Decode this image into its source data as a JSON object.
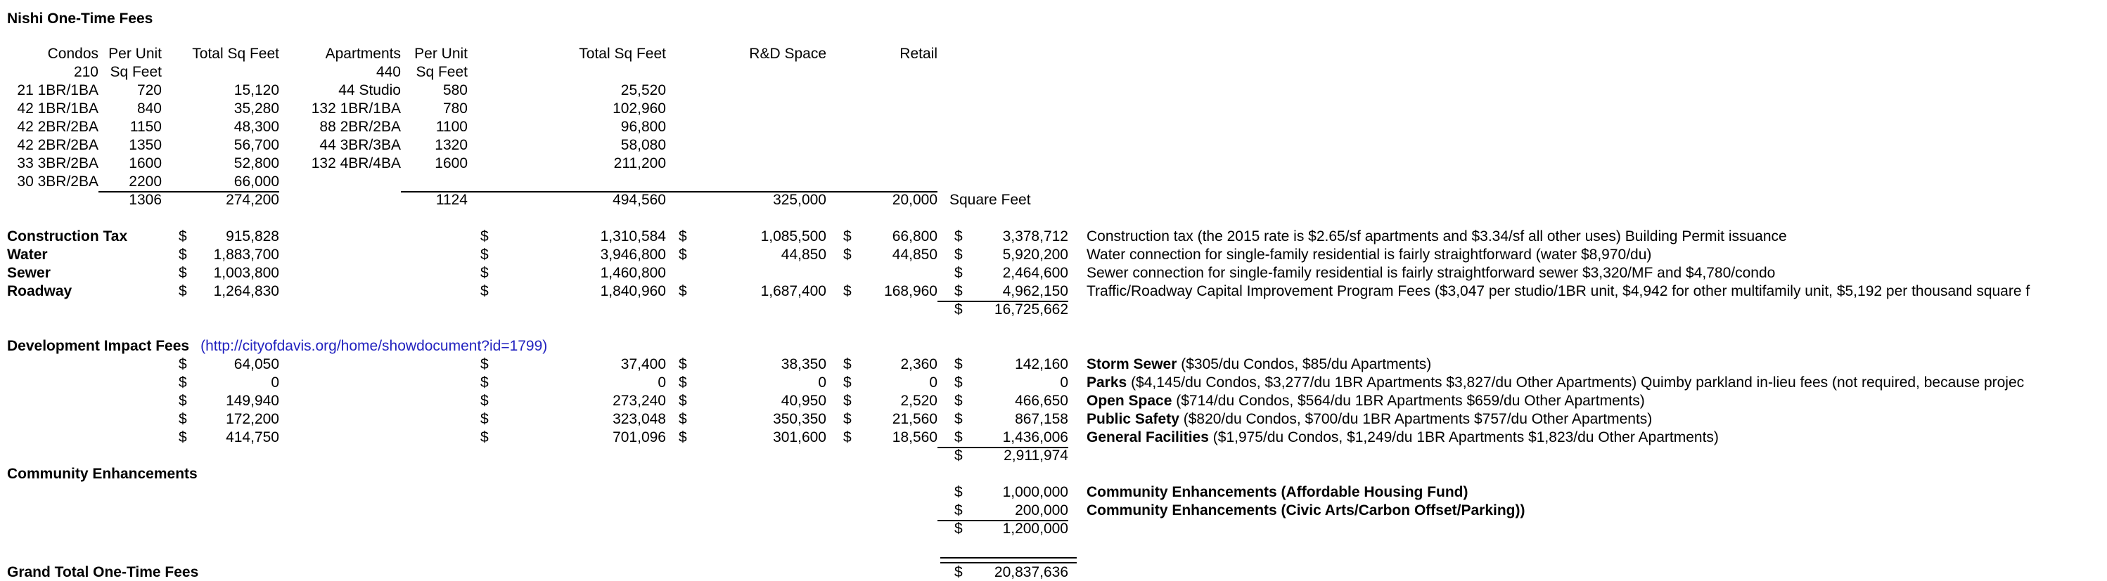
{
  "title": "Nishi One-Time Fees",
  "colors": {
    "text": "#000000",
    "background": "#ffffff",
    "link_blue": "#2222bf",
    "rule_black": "#000000"
  },
  "link": {
    "text": "(http://cityofdavis.org/home/showdocument?id=1799)"
  },
  "rows": [
    {
      "n": "units-header",
      "cells": [
        {
          "c": 1,
          "t": "Condos",
          "num": true
        },
        {
          "c": 2,
          "t": "Per Unit",
          "num": true
        },
        {
          "c": 3,
          "t": "Total Sq Feet",
          "num": true
        },
        {
          "c": 4,
          "t": "Apartments",
          "num": true
        },
        {
          "c": 5,
          "t": "Per Unit",
          "num": true
        },
        {
          "c": 6,
          "t": "Total Sq Feet",
          "num": true
        },
        {
          "c": 7,
          "t": "R&D Space",
          "num": true
        },
        {
          "c": 8,
          "t": "Retail",
          "num": true
        }
      ]
    },
    {
      "n": "units-subheader",
      "cells": [
        {
          "c": 1,
          "t": "210",
          "num": true
        },
        {
          "c": 2,
          "t": "Sq Feet",
          "num": true
        },
        {
          "c": 4,
          "t": "440",
          "num": true
        },
        {
          "c": 5,
          "t": "Sq Feet",
          "num": true
        }
      ]
    },
    {
      "n": "unit-row-1",
      "cells": [
        {
          "c": 1,
          "t": "21 1BR/1BA",
          "num": true
        },
        {
          "c": 2,
          "t": "720",
          "num": true
        },
        {
          "c": 3,
          "t": "15,120",
          "num": true
        },
        {
          "c": 4,
          "t": "44 Studio",
          "num": true
        },
        {
          "c": 5,
          "t": "580",
          "num": true
        },
        {
          "c": 6,
          "t": "25,520",
          "num": true
        }
      ]
    },
    {
      "n": "unit-row-2",
      "cells": [
        {
          "c": 1,
          "t": "42 1BR/1BA",
          "num": true
        },
        {
          "c": 2,
          "t": "840",
          "num": true
        },
        {
          "c": 3,
          "t": "35,280",
          "num": true
        },
        {
          "c": 4,
          "t": "132 1BR/1BA",
          "num": true
        },
        {
          "c": 5,
          "t": "780",
          "num": true
        },
        {
          "c": 6,
          "t": "102,960",
          "num": true
        }
      ]
    },
    {
      "n": "unit-row-3",
      "cells": [
        {
          "c": 1,
          "t": "42 2BR/2BA",
          "num": true
        },
        {
          "c": 2,
          "t": "1150",
          "num": true
        },
        {
          "c": 3,
          "t": "48,300",
          "num": true
        },
        {
          "c": 4,
          "t": "88 2BR/2BA",
          "num": true
        },
        {
          "c": 5,
          "t": "1100",
          "num": true
        },
        {
          "c": 6,
          "t": "96,800",
          "num": true
        }
      ]
    },
    {
      "n": "unit-row-4",
      "cells": [
        {
          "c": 1,
          "t": "42 2BR/2BA",
          "num": true
        },
        {
          "c": 2,
          "t": "1350",
          "num": true
        },
        {
          "c": 3,
          "t": "56,700",
          "num": true
        },
        {
          "c": 4,
          "t": "44 3BR/3BA",
          "num": true
        },
        {
          "c": 5,
          "t": "1320",
          "num": true
        },
        {
          "c": 6,
          "t": "58,080",
          "num": true
        }
      ]
    },
    {
      "n": "unit-row-5",
      "cells": [
        {
          "c": 1,
          "t": "33 3BR/2BA",
          "num": true
        },
        {
          "c": 2,
          "t": "1600",
          "num": true
        },
        {
          "c": 3,
          "t": "52,800",
          "num": true
        },
        {
          "c": 4,
          "t": "132 4BR/4BA",
          "num": true
        },
        {
          "c": 5,
          "t": "1600",
          "num": true
        },
        {
          "c": 6,
          "t": "211,200",
          "num": true
        }
      ]
    },
    {
      "n": "unit-row-6",
      "cells": [
        {
          "c": 1,
          "t": "30 3BR/2BA",
          "num": true
        },
        {
          "c": 2,
          "t": "2200",
          "num": true,
          "u": true
        },
        {
          "c": 3,
          "t": "66,000",
          "num": true,
          "u": true
        },
        {
          "c": 5,
          "t": "",
          "u": true
        },
        {
          "c": 6,
          "t": "",
          "u": true
        },
        {
          "c": 7,
          "t": "",
          "u": true
        },
        {
          "c": 8,
          "t": "",
          "u": true
        }
      ]
    },
    {
      "n": "units-total",
      "cells": [
        {
          "c": 2,
          "t": "1306",
          "num": true
        },
        {
          "c": 3,
          "t": "274,200",
          "num": true
        },
        {
          "c": 5,
          "t": "1124",
          "num": true
        },
        {
          "c": 6,
          "t": "494,560",
          "num": true
        },
        {
          "c": 7,
          "t": "325,000",
          "num": true
        },
        {
          "c": 8,
          "t": "20,000",
          "num": true
        },
        {
          "c": 9,
          "t": "Square Feet",
          "leftpad": true
        }
      ]
    },
    {
      "n": "spacer-1",
      "cells": []
    },
    {
      "n": "fee-construction-tax",
      "cells": [
        {
          "c": 1,
          "t": "Construction Tax",
          "b": true
        },
        {
          "c": 3,
          "m": "915,828"
        },
        {
          "c": 6,
          "m": "1,310,584"
        },
        {
          "c": 7,
          "m": "1,085,500"
        },
        {
          "c": 8,
          "m": "66,800"
        },
        {
          "c": 9,
          "m": "3,378,712"
        },
        {
          "c": 11,
          "parts": [
            {
              "t": "Construction tax (the 2015 rate is $2.65/sf apartments and $3.34/sf all other uses) Building Permit issuance"
            }
          ]
        }
      ]
    },
    {
      "n": "fee-water",
      "cells": [
        {
          "c": 1,
          "t": "Water",
          "b": true
        },
        {
          "c": 3,
          "m": "1,883,700"
        },
        {
          "c": 6,
          "m": "3,946,800"
        },
        {
          "c": 7,
          "m": "44,850"
        },
        {
          "c": 8,
          "m": "44,850"
        },
        {
          "c": 9,
          "m": "5,920,200"
        },
        {
          "c": 11,
          "parts": [
            {
              "t": "Water connection for single-family residential is fairly straightforward (water $8,970/du)"
            }
          ]
        }
      ]
    },
    {
      "n": "fee-sewer",
      "cells": [
        {
          "c": 1,
          "t": "Sewer",
          "b": true
        },
        {
          "c": 3,
          "m": "1,003,800"
        },
        {
          "c": 6,
          "m": "1,460,800"
        },
        {
          "c": 9,
          "m": "2,464,600"
        },
        {
          "c": 11,
          "parts": [
            {
              "t": "Sewer connection for single-family residential is fairly straightforward sewer $3,320/MF and $4,780/condo"
            }
          ]
        }
      ]
    },
    {
      "n": "fee-roadway",
      "cells": [
        {
          "c": 1,
          "t": "Roadway",
          "b": true
        },
        {
          "c": 3,
          "m": "1,264,830"
        },
        {
          "c": 6,
          "m": "1,840,960"
        },
        {
          "c": 7,
          "m": "1,687,400"
        },
        {
          "c": 8,
          "m": "168,960"
        },
        {
          "c": 9,
          "m": "4,962,150",
          "u": true
        },
        {
          "c": 11,
          "parts": [
            {
              "t": "Traffic/Roadway Capital Improvement Program Fees ($3,047 per studio/1BR unit, $4,942 for other multifamily unit, $5,192 per thousand square f"
            }
          ]
        }
      ]
    },
    {
      "n": "fees-subtotal",
      "cells": [
        {
          "c": 9,
          "m": "16,725,662"
        }
      ]
    },
    {
      "n": "spacer-2",
      "cells": []
    },
    {
      "n": "dif-header",
      "cells": [
        {
          "c": "span",
          "parts": [
            {
              "t": "Development Impact Fees",
              "b": true
            },
            {
              "t": "(http://cityofdavis.org/home/showdocument?id=1799)",
              "link": true
            }
          ]
        }
      ]
    },
    {
      "n": "dif-storm-sewer",
      "cells": [
        {
          "c": 3,
          "m": "64,050"
        },
        {
          "c": 6,
          "m": "37,400"
        },
        {
          "c": 7,
          "m": "38,350"
        },
        {
          "c": 8,
          "m": "2,360"
        },
        {
          "c": 9,
          "m": "142,160"
        },
        {
          "c": 11,
          "parts": [
            {
              "t": "Storm Sewer ",
              "b": true
            },
            {
              "t": "($305/du Condos, $85/du Apartments)"
            }
          ]
        }
      ]
    },
    {
      "n": "dif-parks",
      "cells": [
        {
          "c": 3,
          "m": "0"
        },
        {
          "c": 6,
          "m": "0"
        },
        {
          "c": 7,
          "m": "0"
        },
        {
          "c": 8,
          "m": "0"
        },
        {
          "c": 9,
          "m": "0"
        },
        {
          "c": 11,
          "parts": [
            {
              "t": "Parks ",
              "b": true
            },
            {
              "t": "($4,145/du Condos, $3,277/du 1BR Apartments $3,827/du Other Apartments) Quimby parkland in-lieu fees (not required, because projec"
            }
          ]
        }
      ]
    },
    {
      "n": "dif-open-space",
      "cells": [
        {
          "c": 3,
          "m": "149,940"
        },
        {
          "c": 6,
          "m": "273,240"
        },
        {
          "c": 7,
          "m": "40,950"
        },
        {
          "c": 8,
          "m": "2,520"
        },
        {
          "c": 9,
          "m": "466,650"
        },
        {
          "c": 11,
          "parts": [
            {
              "t": "Open Space ",
              "b": true
            },
            {
              "t": "($714/du Condos, $564/du 1BR Apartments $659/du Other Apartments)"
            }
          ]
        }
      ]
    },
    {
      "n": "dif-public-safety",
      "cells": [
        {
          "c": 3,
          "m": "172,200"
        },
        {
          "c": 6,
          "m": "323,048"
        },
        {
          "c": 7,
          "m": "350,350"
        },
        {
          "c": 8,
          "m": "21,560"
        },
        {
          "c": 9,
          "m": "867,158"
        },
        {
          "c": 11,
          "parts": [
            {
              "t": "Public Safety ",
              "b": true
            },
            {
              "t": "($820/du Condos, $700/du 1BR Apartments $757/du Other Apartments)"
            }
          ]
        }
      ]
    },
    {
      "n": "dif-general-facilities",
      "cells": [
        {
          "c": 3,
          "m": "414,750"
        },
        {
          "c": 6,
          "m": "701,096"
        },
        {
          "c": 7,
          "m": "301,600"
        },
        {
          "c": 8,
          "m": "18,560"
        },
        {
          "c": 9,
          "m": "1,436,006",
          "u": true
        },
        {
          "c": 11,
          "parts": [
            {
              "t": "General Facilities ",
              "b": true
            },
            {
              "t": "($1,975/du Condos, $1,249/du 1BR Apartments $1,823/du Other Apartments)"
            }
          ]
        }
      ]
    },
    {
      "n": "dif-subtotal",
      "cells": [
        {
          "c": 9,
          "m": "2,911,974"
        }
      ]
    },
    {
      "n": "ce-header",
      "cells": [
        {
          "c": 1,
          "t": "Community Enhancements",
          "b": true
        }
      ]
    },
    {
      "n": "ce-affordable-housing",
      "cells": [
        {
          "c": 9,
          "m": "1,000,000"
        },
        {
          "c": 11,
          "parts": [
            {
              "t": "Community Enhancements (Affordable Housing Fund)",
              "b": true
            }
          ]
        }
      ]
    },
    {
      "n": "ce-civic-arts",
      "cells": [
        {
          "c": 9,
          "m": "200,000",
          "u": true
        },
        {
          "c": 11,
          "parts": [
            {
              "t": "Community Enhancements (Civic Arts/Carbon Offset/Parking))",
              "b": true
            }
          ]
        }
      ]
    },
    {
      "n": "ce-subtotal",
      "cells": [
        {
          "c": 9,
          "m": "1,200,000"
        }
      ]
    },
    {
      "n": "spacer-3",
      "h": 20,
      "cells": []
    },
    {
      "n": "grand-total-rule",
      "rule": true,
      "cells": [
        {
          "c": 9,
          "dbl": true
        }
      ]
    },
    {
      "n": "grand-total",
      "cells": [
        {
          "c": 1,
          "t": "Grand Total One-Time Fees",
          "b": true
        },
        {
          "c": 9,
          "m": "20,837,636"
        }
      ]
    }
  ]
}
